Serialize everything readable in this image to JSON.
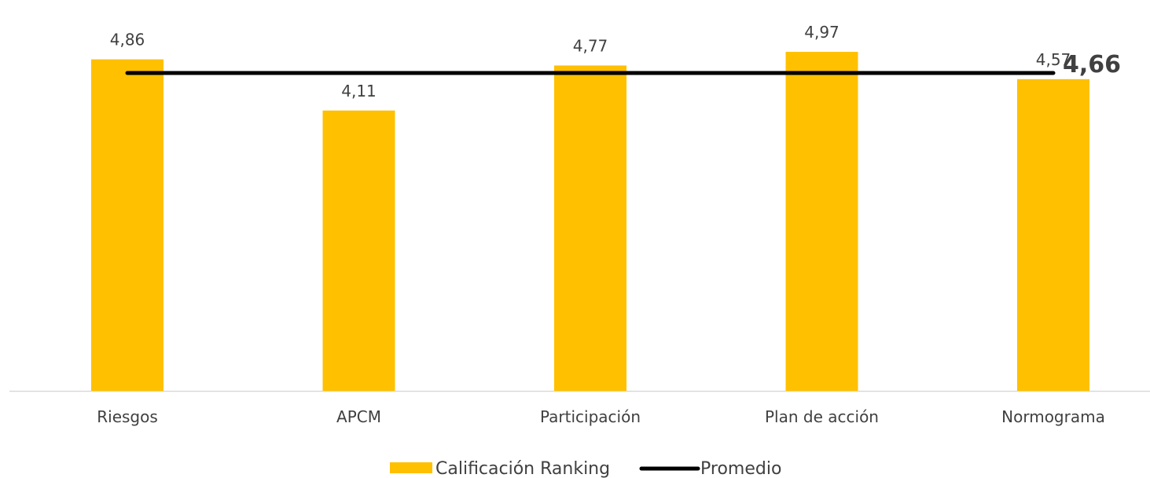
{
  "chart_data": {
    "type": "bar",
    "categories": [
      "Riesgos",
      "APCM",
      "Participación",
      "Plan de acción",
      "Normograma"
    ],
    "series": [
      {
        "name": "Calificación Ranking",
        "type": "bar",
        "values": [
          4.86,
          4.11,
          4.77,
          4.97,
          4.57
        ],
        "labels": [
          "4,86",
          "4,11",
          "4,77",
          "4,97",
          "4,57"
        ],
        "color": "#FFC000"
      },
      {
        "name": "Promedio",
        "type": "line",
        "values": [
          4.66,
          4.66,
          4.66,
          4.66,
          4.66
        ],
        "color": "#000000"
      }
    ],
    "average_label": "4,66",
    "ylim": [
      0,
      5.5
    ],
    "grid": false,
    "legend": "bottom"
  },
  "colors": {
    "bar": "#FFC000",
    "line": "#000000",
    "text": "#404040",
    "axis": "#D9D9D9"
  }
}
